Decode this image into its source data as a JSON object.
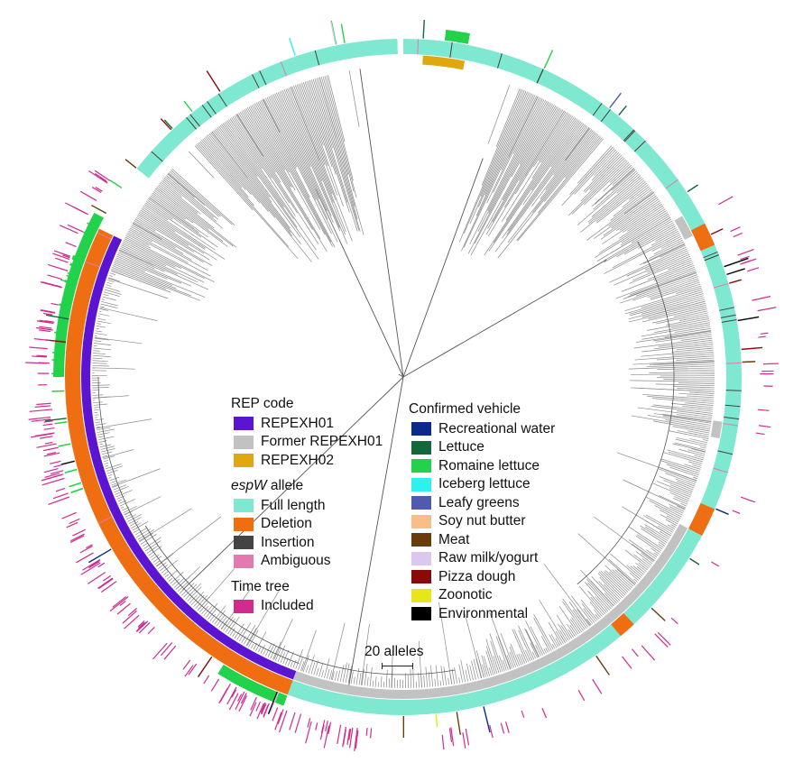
{
  "colors": {
    "tree_branch": "#8a8a8a",
    "repexh01": "#5b14d2",
    "former_repexh01": "#c2c2c2",
    "repexh02": "#e0a810",
    "full_length": "#7fe8d0",
    "deletion": "#f06e12",
    "insertion": "#444444",
    "ambiguous": "#e07ab0",
    "time_tree_included": "#cf2c8e",
    "recreational_water": "#0b2a8c",
    "lettuce": "#12683a",
    "romaine_lettuce": "#22d24a",
    "iceberg_lettuce": "#2ef0f0",
    "leafy_greens": "#4f5ab0",
    "soy_nut_butter": "#f7be86",
    "meat": "#6a3c0c",
    "raw_milk_yogurt": "#dcc8ee",
    "pizza_dough": "#8a0a0a",
    "zoonotic": "#e6e61a",
    "environmental": "#000000"
  },
  "legend_left": {
    "rep_code": {
      "title": "REP code",
      "items": [
        {
          "label": "REPEXH01",
          "color": "#5b14d2"
        },
        {
          "label": "Former REPEXH01",
          "color": "#c2c2c2"
        },
        {
          "label": "REPEXH02",
          "color": "#e0a810"
        }
      ]
    },
    "espw_allele": {
      "title_italic": "espW",
      "title_rest": " allele",
      "items": [
        {
          "label": "Full length",
          "color": "#7fe8d0"
        },
        {
          "label": "Deletion",
          "color": "#f06e12"
        },
        {
          "label": "Insertion",
          "color": "#444444"
        },
        {
          "label": "Ambiguous",
          "color": "#e07ab0"
        }
      ]
    },
    "time_tree": {
      "title": "Time tree",
      "items": [
        {
          "label": "Included",
          "color": "#cf2c8e"
        }
      ]
    }
  },
  "legend_right": {
    "confirmed_vehicle": {
      "title": "Confirmed vehicle",
      "items": [
        {
          "label": "Recreational water",
          "color": "#0b2a8c"
        },
        {
          "label": "Lettuce",
          "color": "#12683a"
        },
        {
          "label": "Romaine lettuce",
          "color": "#22d24a"
        },
        {
          "label": "Iceberg lettuce",
          "color": "#2ef0f0"
        },
        {
          "label": "Leafy greens",
          "color": "#4f5ab0"
        },
        {
          "label": "Soy nut butter",
          "color": "#f7be86"
        },
        {
          "label": "Meat",
          "color": "#6a3c0c"
        },
        {
          "label": "Raw milk/yogurt",
          "color": "#dcc8ee"
        },
        {
          "label": "Pizza dough",
          "color": "#8a0a0a"
        },
        {
          "label": "Zoonotic",
          "color": "#e6e61a"
        },
        {
          "label": "Environmental",
          "color": "#000000"
        }
      ]
    }
  },
  "scale_bar": {
    "label": "20 alleles"
  }
}
